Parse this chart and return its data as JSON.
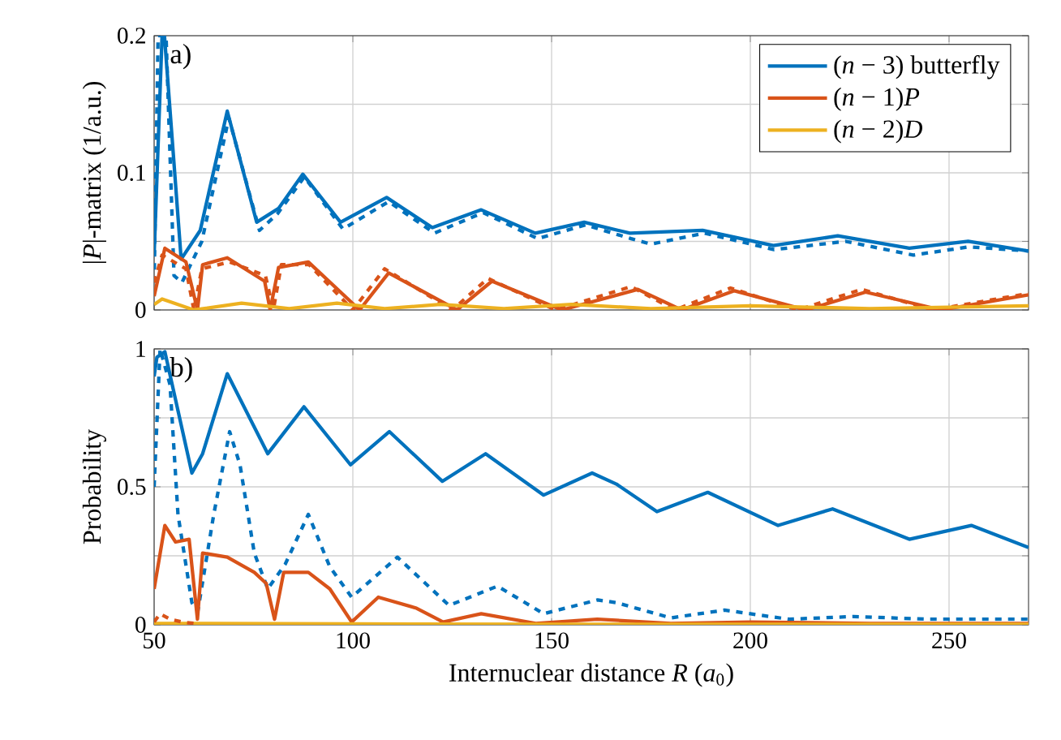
{
  "chart_data": [
    {
      "type": "line",
      "ylabel": "|*P*|-matrix (1/a.u.)",
      "annotations": [
        "a)"
      ],
      "xlim": [
        50,
        270
      ],
      "xticks": [
        50,
        100,
        150,
        200,
        250
      ],
      "ylim": [
        0,
        0.2
      ],
      "yticks": [
        0,
        {
          "value": 0.05,
          "label": null
        },
        0.1,
        {
          "value": 0.15,
          "label": null
        },
        0.2
      ],
      "grid": true,
      "tick_labels": "y",
      "legend": "top right",
      "series": [
        {
          "name": "(*n* − 3) butterfly",
          "color": "#0072bd",
          "line_style": "solid",
          "x": [
            50,
            52,
            52.6,
            56.8,
            61.6,
            68.4,
            75.8,
            81.3,
            87.4,
            96.9,
            108.5,
            120,
            132.3,
            145.9,
            158.2,
            169.7,
            188,
            205.8,
            222,
            240,
            254.8,
            270
          ],
          "values": [
            0.04,
            0.2,
            0.2,
            0.037,
            0.058,
            0.145,
            0.064,
            0.074,
            0.099,
            0.064,
            0.082,
            0.06,
            0.073,
            0.056,
            0.064,
            0.056,
            0.058,
            0.047,
            0.054,
            0.045,
            0.05,
            0.043
          ]
        },
        {
          "color": "#0072bd",
          "line_style": "dashed",
          "x": [
            50,
            51,
            53,
            55,
            57,
            62,
            68.8,
            76.5,
            81,
            87.8,
            97.5,
            109,
            120.5,
            132.8,
            146.5,
            158.5,
            170,
            175,
            188.5,
            206,
            224,
            241,
            255,
            270
          ],
          "values": [
            0.02,
            0.2,
            0.2,
            0.025,
            0.02,
            0.05,
            0.14,
            0.058,
            0.07,
            0.097,
            0.059,
            0.079,
            0.056,
            0.071,
            0.052,
            0.062,
            0.052,
            0.048,
            0.056,
            0.044,
            0.05,
            0.04,
            0.046,
            0.043
          ]
        },
        {
          "name": "(*n* − 1)*P*",
          "color": "#d95319",
          "line_style": "solid",
          "x": [
            50,
            52.7,
            58,
            60.9,
            62.2,
            68.4,
            77.8,
            79.2,
            81.3,
            88.8,
            101.7,
            109,
            126.2,
            135,
            152.6,
            171.7,
            182.7,
            196,
            214,
            229,
            248,
            270
          ],
          "values": [
            0.01,
            0.045,
            0.035,
            0,
            0.033,
            0.038,
            0.021,
            0,
            0.031,
            0.035,
            0,
            0.027,
            0,
            0.021,
            0,
            0.015,
            0,
            0.014,
            0,
            0.013,
            0,
            0.011
          ]
        },
        {
          "color": "#d95319",
          "line_style": "dashed",
          "x": [
            50,
            52,
            58,
            60,
            62,
            69,
            78,
            80,
            82,
            89,
            100,
            108,
            125,
            134,
            151,
            170,
            181,
            195,
            212,
            228,
            246,
            270
          ],
          "values": [
            0.02,
            0.04,
            0.03,
            0,
            0.03,
            0.035,
            0.025,
            0,
            0.033,
            0.033,
            0,
            0.03,
            0,
            0.023,
            0,
            0.017,
            0,
            0.016,
            0,
            0.015,
            0,
            0.012
          ]
        },
        {
          "name": "(*n* − 2)*D*",
          "color": "#edb120",
          "line_style": "solid",
          "x": [
            50,
            52,
            60,
            72,
            84,
            96,
            108,
            122,
            138,
            155,
            175,
            200,
            230,
            270
          ],
          "values": [
            0.004,
            0.008,
            0,
            0.005,
            0.001,
            0.005,
            0.001,
            0.004,
            0.001,
            0.004,
            0.001,
            0.003,
            0.001,
            0.003
          ]
        }
      ]
    },
    {
      "type": "line",
      "xlabel": "Internuclear distance *R* (*a*$_{0}$)",
      "ylabel": "Probability",
      "annotations": [
        "b)"
      ],
      "xlim": [
        50,
        270
      ],
      "xticks": [
        50,
        100,
        150,
        200,
        250
      ],
      "ylim": [
        0,
        1
      ],
      "yticks": [
        0,
        {
          "value": 0.25,
          "label": null
        },
        0.5,
        {
          "value": 0.75,
          "label": null
        },
        1
      ],
      "grid": true,
      "series": [
        {
          "color": "#0072bd",
          "line_style": "solid",
          "x": [
            50,
            50.7,
            52.7,
            59.5,
            62.2,
            68.4,
            78.6,
            87.7,
            99.4,
            109.2,
            122.5,
            133.4,
            148,
            160.2,
            166.3,
            176.5,
            189.3,
            207,
            220.7,
            240,
            255.6,
            270
          ],
          "values": [
            0.9,
            0.97,
            0.99,
            0.55,
            0.62,
            0.91,
            0.62,
            0.79,
            0.58,
            0.7,
            0.52,
            0.62,
            0.47,
            0.55,
            0.51,
            0.41,
            0.48,
            0.36,
            0.42,
            0.31,
            0.36,
            0.28
          ]
        },
        {
          "color": "#0072bd",
          "line_style": "dashed",
          "x": [
            50,
            51.5,
            54,
            56,
            59.5,
            61,
            65,
            69,
            71.6,
            75.2,
            78.6,
            83,
            88.8,
            94.2,
            99.7,
            111.2,
            124.2,
            136.4,
            148,
            161.6,
            166.3,
            180,
            193.5,
            209.8,
            226,
            245,
            270
          ],
          "values": [
            0.5,
            1,
            0.87,
            0.4,
            0.08,
            0.05,
            0.4,
            0.7,
            0.58,
            0.26,
            0.13,
            0.22,
            0.4,
            0.21,
            0.1,
            0.245,
            0.07,
            0.14,
            0.04,
            0.09,
            0.08,
            0.025,
            0.053,
            0.02,
            0.03,
            0.02,
            0.02
          ]
        },
        {
          "color": "#d95319",
          "line_style": "solid",
          "x": [
            50,
            52.7,
            55.4,
            58.8,
            60.9,
            62.2,
            68.4,
            75.2,
            78.2,
            80.3,
            82.6,
            88.8,
            94.2,
            99.7,
            106.4,
            116,
            122.7,
            132.3,
            146,
            161.5,
            180,
            200,
            230,
            270
          ],
          "values": [
            0.13,
            0.36,
            0.3,
            0.31,
            0.02,
            0.26,
            0.245,
            0.19,
            0.15,
            0.02,
            0.19,
            0.19,
            0.13,
            0.01,
            0.1,
            0.06,
            0.01,
            0.04,
            0.005,
            0.02,
            0.005,
            0.01,
            0.005,
            0.005
          ]
        },
        {
          "color": "#edb120",
          "line_style": "solid",
          "x": [
            50,
            100,
            150,
            200,
            270
          ],
          "values": [
            0.005,
            0.003,
            0.002,
            0.002,
            0.002
          ]
        },
        {
          "color": "#d95319",
          "line_style": "dashed",
          "x": [
            50,
            51.5,
            54,
            57,
            60
          ],
          "values": [
            0.01,
            0.04,
            0.02,
            0.01,
            0.005
          ]
        }
      ]
    }
  ]
}
